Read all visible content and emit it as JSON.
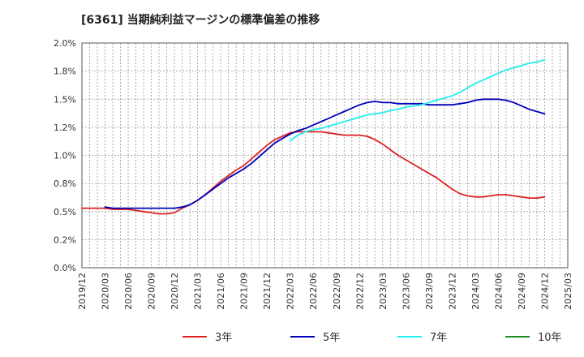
{
  "chart_data": {
    "type": "line",
    "title": "[6361]  当期純利益マージンの標準偏差の推移",
    "xlabel": "",
    "ylabel": "",
    "ylim": [
      0,
      0.02
    ],
    "y_ticks": [
      "0.0%",
      "0.2%",
      "0.5%",
      "0.8%",
      "1.0%",
      "1.2%",
      "1.5%",
      "1.8%",
      "2.0%"
    ],
    "x_ticks": [
      "2019/12",
      "2020/03",
      "2020/06",
      "2020/09",
      "2020/12",
      "2021/03",
      "2021/06",
      "2021/09",
      "2021/12",
      "2022/03",
      "2022/06",
      "2022/09",
      "2022/12",
      "2023/03",
      "2023/06",
      "2023/09",
      "2023/12",
      "2024/03",
      "2024/06",
      "2024/09",
      "2024/12",
      "2025/03"
    ],
    "grid": true,
    "legend_position": "bottom",
    "x_months": [
      "2019/12",
      "2020/01",
      "2020/02",
      "2020/03",
      "2020/04",
      "2020/05",
      "2020/06",
      "2020/07",
      "2020/08",
      "2020/09",
      "2020/10",
      "2020/11",
      "2020/12",
      "2021/01",
      "2021/02",
      "2021/03",
      "2021/04",
      "2021/05",
      "2021/06",
      "2021/07",
      "2021/08",
      "2021/09",
      "2021/10",
      "2021/11",
      "2021/12",
      "2022/01",
      "2022/02",
      "2022/03",
      "2022/04",
      "2022/05",
      "2022/06",
      "2022/07",
      "2022/08",
      "2022/09",
      "2022/10",
      "2022/11",
      "2022/12",
      "2023/01",
      "2023/02",
      "2023/03",
      "2023/04",
      "2023/05",
      "2023/06",
      "2023/07",
      "2023/08",
      "2023/09",
      "2023/10",
      "2023/11",
      "2023/12",
      "2024/01",
      "2024/02",
      "2024/03",
      "2024/04",
      "2024/05",
      "2024/06",
      "2024/07",
      "2024/08",
      "2024/09",
      "2024/10",
      "2024/11",
      "2024/12"
    ],
    "series": [
      {
        "name": "3年",
        "color": "#dd2222",
        "values": [
          0.0053,
          0.0053,
          0.0053,
          0.0053,
          0.0052,
          0.0052,
          0.0052,
          0.0051,
          0.005,
          0.0049,
          0.0048,
          0.0048,
          0.0049,
          0.0053,
          0.0056,
          0.006,
          0.0065,
          0.0071,
          0.0077,
          0.0082,
          0.0087,
          0.0091,
          0.0097,
          0.0103,
          0.0109,
          0.0114,
          0.0117,
          0.012,
          0.0121,
          0.0121,
          0.0121,
          0.0121,
          0.012,
          0.0119,
          0.0118,
          0.0118,
          0.0118,
          0.0117,
          0.0114,
          0.011,
          0.0105,
          0.01,
          0.0096,
          0.0092,
          0.0088,
          0.0084,
          0.008,
          0.0075,
          0.007,
          0.0066,
          0.0064,
          0.0063,
          0.0063,
          0.0064,
          0.0065,
          0.0065,
          0.0064,
          0.0063,
          0.0062,
          0.0062,
          0.0063
        ]
      },
      {
        "name": "5年",
        "color": "#0000bb",
        "values": [
          null,
          null,
          null,
          0.0054,
          0.0053,
          0.0053,
          0.0053,
          0.0053,
          0.0053,
          0.0053,
          0.0053,
          0.0053,
          0.0053,
          0.0054,
          0.0056,
          0.006,
          0.0065,
          0.007,
          0.0075,
          0.008,
          0.0084,
          0.0088,
          0.0093,
          0.0099,
          0.0105,
          0.0111,
          0.0115,
          0.0119,
          0.0122,
          0.0124,
          0.0127,
          0.013,
          0.0133,
          0.0136,
          0.0139,
          0.0142,
          0.0145,
          0.0147,
          0.0148,
          0.0147,
          0.0147,
          0.0146,
          0.0146,
          0.0146,
          0.0146,
          0.0145,
          0.0145,
          0.0145,
          0.0145,
          0.0146,
          0.0147,
          0.0149,
          0.015,
          0.015,
          0.015,
          0.0149,
          0.0147,
          0.0144,
          0.0141,
          0.0139,
          0.0137
        ]
      },
      {
        "name": "7年",
        "color": "#22eeee",
        "values": [
          null,
          null,
          null,
          null,
          null,
          null,
          null,
          null,
          null,
          null,
          null,
          null,
          null,
          null,
          null,
          null,
          null,
          null,
          null,
          null,
          null,
          null,
          null,
          null,
          null,
          null,
          null,
          0.0113,
          0.0118,
          0.0121,
          0.0123,
          0.0124,
          0.0126,
          0.0128,
          0.013,
          0.0132,
          0.0134,
          0.0136,
          0.0137,
          0.0138,
          0.014,
          0.0141,
          0.0143,
          0.0144,
          0.0145,
          0.0147,
          0.0149,
          0.0151,
          0.0153,
          0.0156,
          0.016,
          0.0164,
          0.0167,
          0.017,
          0.0173,
          0.0176,
          0.0178,
          0.018,
          0.0182,
          0.0183,
          0.0185
        ]
      },
      {
        "name": "10年",
        "color": "#228822",
        "values": []
      }
    ]
  }
}
